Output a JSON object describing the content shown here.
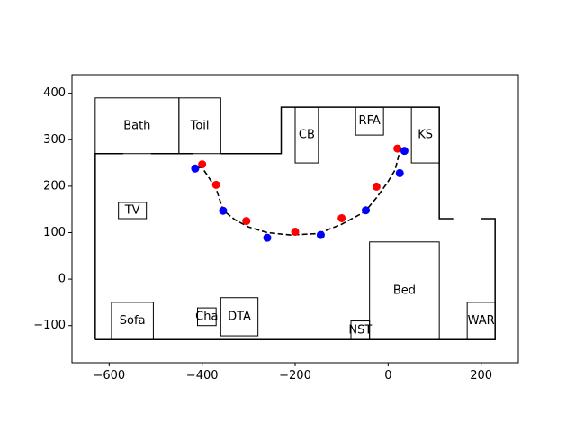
{
  "chart_data": {
    "type": "scatter",
    "title": "",
    "xlabel": "",
    "ylabel": "",
    "xlim": [
      -680,
      280
    ],
    "ylim": [
      -180,
      440
    ],
    "xticks": [
      -600,
      -400,
      -200,
      0,
      200
    ],
    "yticks": [
      -100,
      0,
      100,
      200,
      300,
      400
    ],
    "xtick_labels": [
      "−600",
      "−400",
      "−200",
      "0",
      "200"
    ],
    "ytick_labels": [
      "−100",
      "0",
      "100",
      "200",
      "300",
      "400"
    ],
    "grid": false,
    "floor_outline": [
      [
        -630,
        -130
      ],
      [
        -630,
        270
      ],
      [
        -230,
        270
      ],
      [
        -230,
        370
      ],
      [
        110,
        370
      ],
      [
        110,
        130
      ],
      [
        230,
        130
      ],
      [
        230,
        -130
      ],
      [
        -630,
        -130
      ]
    ],
    "rooms": [
      {
        "label": "Bath",
        "x0": -630,
        "y0": 270,
        "x1": -450,
        "y1": 390
      },
      {
        "label": "Toil",
        "x0": -450,
        "y0": 270,
        "x1": -360,
        "y1": 390
      },
      {
        "label": "CB",
        "x0": -200,
        "y0": 250,
        "x1": -150,
        "y1": 370
      },
      {
        "label": "RFA",
        "x0": -70,
        "y0": 310,
        "x1": -10,
        "y1": 370
      },
      {
        "label": "KS",
        "x0": 50,
        "y0": 250,
        "x1": 110,
        "y1": 370
      },
      {
        "label": "TV",
        "x0": -580,
        "y0": 130,
        "x1": -520,
        "y1": 165
      },
      {
        "label": "Bed",
        "x0": -40,
        "y0": -130,
        "x1": 110,
        "y1": 80
      },
      {
        "label": "Sofa",
        "x0": -595,
        "y0": -130,
        "x1": -505,
        "y1": -50
      },
      {
        "label": "Cha",
        "x0": -410,
        "y0": -100,
        "x1": -370,
        "y1": -62
      },
      {
        "label": "DTA",
        "x0": -360,
        "y0": -122,
        "x1": -280,
        "y1": -40
      },
      {
        "label": "NST",
        "x0": -80,
        "y0": -130,
        "x1": -40,
        "y1": -90
      },
      {
        "label": "WAR",
        "x0": 170,
        "y0": -130,
        "x1": 230,
        "y1": -50
      }
    ],
    "doors": [
      {
        "x0": -570,
        "x1": -510,
        "y": 270
      },
      {
        "x0": -420,
        "x1": -360,
        "y": 270
      },
      {
        "x0": 140,
        "x1": 200,
        "y": 130
      }
    ],
    "path": {
      "x": [
        -410,
        -400,
        -370,
        -355,
        -330,
        -300,
        -260,
        -210,
        -150,
        -100,
        -50,
        -25,
        0,
        15,
        25
      ],
      "y": [
        240,
        240,
        195,
        148,
        128,
        112,
        100,
        95,
        98,
        118,
        145,
        175,
        210,
        235,
        275
      ]
    },
    "series": [
      {
        "color": "#ff0000",
        "points": [
          {
            "x": -400,
            "y": 247
          },
          {
            "x": -370,
            "y": 203
          },
          {
            "x": -305,
            "y": 125
          },
          {
            "x": -200,
            "y": 102
          },
          {
            "x": -100,
            "y": 131
          },
          {
            "x": -25,
            "y": 199
          },
          {
            "x": 20,
            "y": 281
          }
        ]
      },
      {
        "color": "#0000ff",
        "points": [
          {
            "x": -415,
            "y": 238
          },
          {
            "x": -355,
            "y": 147
          },
          {
            "x": -260,
            "y": 89
          },
          {
            "x": -145,
            "y": 95
          },
          {
            "x": -48,
            "y": 148
          },
          {
            "x": 25,
            "y": 228
          },
          {
            "x": 35,
            "y": 276
          }
        ]
      }
    ]
  }
}
